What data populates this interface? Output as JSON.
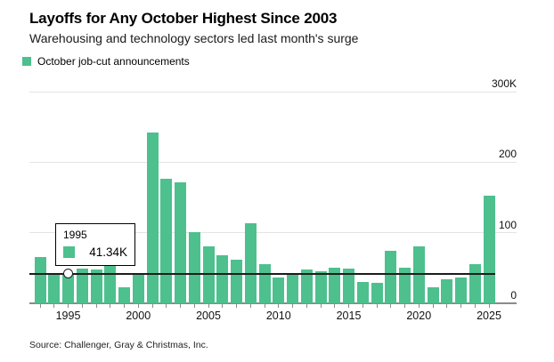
{
  "header": {
    "title": "Layoffs for Any October Highest Since 2003",
    "subtitle": "Warehousing and technology sectors led last month's surge"
  },
  "legend": {
    "label": "October job-cut announcements"
  },
  "tooltip": {
    "year": "1995",
    "value": "41.34K"
  },
  "source": "Source: Challenger, Gray & Christmas, Inc.",
  "colors": {
    "bar": "#4dc08e",
    "gridline": "#e4e4e4",
    "axis": "#8b8b8b",
    "reference_line": "#1c1c1c",
    "background": "#ffffff"
  },
  "chart_data": {
    "type": "bar",
    "title": "Layoffs for Any October Highest Since 2003",
    "subtitle": "Warehousing and technology sectors led last month's surge",
    "series_name": "October job-cut announcements",
    "unit": "thousands of announced job cuts",
    "categories": [
      1993,
      1994,
      1995,
      1996,
      1997,
      1998,
      1999,
      2000,
      2001,
      2002,
      2003,
      2004,
      2005,
      2006,
      2007,
      2008,
      2009,
      2010,
      2011,
      2012,
      2013,
      2014,
      2015,
      2016,
      2017,
      2018,
      2019,
      2020,
      2021,
      2022,
      2023,
      2024,
      2025
    ],
    "values": [
      66,
      42,
      41.34,
      49,
      48,
      56,
      23,
      43,
      242,
      176,
      172,
      101,
      81,
      68,
      62,
      113,
      56,
      37,
      42,
      48,
      46,
      51,
      49,
      30,
      29,
      75,
      50,
      81,
      23,
      34,
      36,
      56,
      153
    ],
    "ylim": [
      0,
      300
    ],
    "y_ticks": [
      {
        "value": 300,
        "label": "300K"
      },
      {
        "value": 200,
        "label": "200"
      },
      {
        "value": 100,
        "label": "100"
      },
      {
        "value": 0,
        "label": "0"
      }
    ],
    "x_tick_labels": [
      1995,
      2000,
      2005,
      2010,
      2015,
      2020,
      2025
    ],
    "grid": "horizontal",
    "legend_position": "top-left",
    "highlighted_point": {
      "year": 1995,
      "value": 41.34,
      "value_label": "41.34K"
    },
    "reference_line_value": 41.34
  }
}
